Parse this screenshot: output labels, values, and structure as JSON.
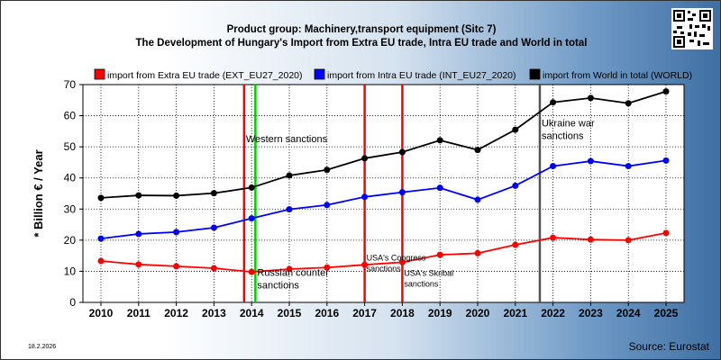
{
  "header": {
    "title_line1": "Product group: Machinery,transport equipment (Sitc 7)",
    "title_line2": "The Development of Hungary's Import from Extra EU trade, Intra EU trade and World in total"
  },
  "footer": {
    "date": "18.2.2026",
    "source": "Source: Eurostat"
  },
  "chart_data": {
    "type": "line",
    "ylabel": "* Billion € / Year",
    "ylim": [
      0,
      70
    ],
    "yticks": [
      0,
      10,
      20,
      30,
      40,
      50,
      60,
      70
    ],
    "grid": true,
    "legend_placement": "top",
    "x": [
      "2010",
      "2011",
      "2012",
      "2013",
      "2014",
      "2015",
      "2016",
      "2017",
      "2018",
      "2019",
      "2020",
      "2021",
      "2022",
      "2023",
      "2024",
      "2025"
    ],
    "series": [
      {
        "name": "import from Extra EU trade (EXT_EU27_2020)",
        "color": "#ff0000",
        "values": [
          13.3,
          12.2,
          11.6,
          11.0,
          9.8,
          10.7,
          11.2,
          12.1,
          12.9,
          15.3,
          15.8,
          18.5,
          20.8,
          20.2,
          20.0,
          22.3
        ]
      },
      {
        "name": "import from Intra EU trade (INT_EU27_2020)",
        "color": "#0000ff",
        "values": [
          20.5,
          22.0,
          22.6,
          24.0,
          27.0,
          29.9,
          31.3,
          33.9,
          35.4,
          36.8,
          33.0,
          37.5,
          43.8,
          45.4,
          43.8,
          45.6
        ]
      },
      {
        "name": "import from World in total (WORLD)",
        "color": "#000000",
        "values": [
          33.6,
          34.4,
          34.3,
          35.1,
          36.9,
          40.8,
          42.6,
          46.3,
          48.3,
          52.1,
          49.0,
          55.5,
          64.3,
          65.7,
          64.0,
          67.8
        ]
      }
    ],
    "events": [
      {
        "label": "Western sanctions",
        "x": 2013.8,
        "color": "#ff0000",
        "label_y": 51.5
      },
      {
        "label": "Russian counter sanctions",
        "x": 2014.1,
        "color": "#00cc00",
        "label_y": 8.5
      },
      {
        "label": "USA's Congress sanctions",
        "x": 2017.0,
        "color": "#ff0000",
        "label_y": 13.5
      },
      {
        "label": "USA's Skribal sanctions",
        "x": 2018.0,
        "color": "#ff0000",
        "label_y": 8.5
      },
      {
        "label": "Ukraine war sanctions",
        "x": 2021.65,
        "color": "#555555",
        "label_y": 56.5
      }
    ]
  }
}
